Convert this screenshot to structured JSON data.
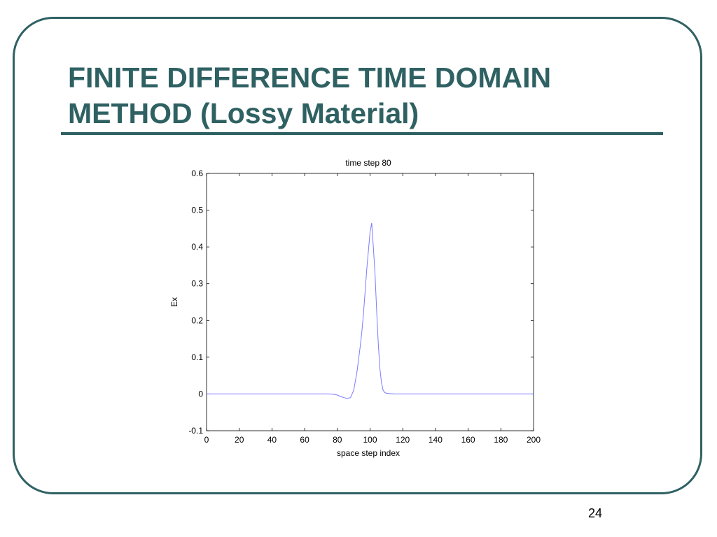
{
  "slide": {
    "title_line1": "FINITE DIFFERENCE TIME DOMAIN",
    "title_line2": "METHOD (Lossy Material)",
    "page_number": "24",
    "accent_color": "#2f6163"
  },
  "chart_data": {
    "type": "line",
    "title": "time step 80",
    "xlabel": "space step index",
    "ylabel": "Ex",
    "xlim": [
      0,
      200
    ],
    "ylim": [
      -0.1,
      0.6
    ],
    "xticks": [
      0,
      20,
      40,
      60,
      80,
      100,
      120,
      140,
      160,
      180,
      200
    ],
    "xtick_labels": [
      "0",
      "20",
      "40",
      "60",
      "80",
      "100",
      "120",
      "140",
      "160",
      "180",
      "200"
    ],
    "yticks": [
      -0.1,
      0,
      0.1,
      0.2,
      0.3,
      0.4,
      0.5,
      0.6
    ],
    "ytick_labels": [
      "-0.1",
      "0",
      "0.1",
      "0.2",
      "0.3",
      "0.4",
      "0.5",
      "0.6"
    ],
    "grid": false,
    "line_color": "#7b7bff",
    "series": [
      {
        "x": [
          0,
          20,
          40,
          60,
          70,
          75,
          78,
          80,
          82,
          84,
          86,
          88,
          90,
          92,
          94,
          95,
          96,
          97,
          98,
          99,
          100,
          101,
          102,
          103,
          104,
          105,
          106,
          107,
          108,
          109,
          110,
          112,
          115,
          120,
          140,
          160,
          180,
          200
        ],
        "y": [
          0,
          0,
          0,
          0,
          0,
          0,
          -0.001,
          -0.003,
          -0.007,
          -0.01,
          -0.012,
          -0.01,
          0.01,
          0.06,
          0.13,
          0.17,
          0.22,
          0.28,
          0.34,
          0.39,
          0.44,
          0.465,
          0.4,
          0.33,
          0.23,
          0.14,
          0.07,
          0.03,
          0.01,
          0.004,
          0.002,
          0.001,
          0,
          0,
          0,
          0,
          0,
          0
        ]
      }
    ]
  }
}
